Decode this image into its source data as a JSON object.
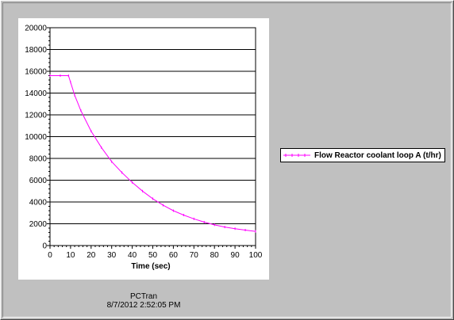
{
  "chart_data": {
    "type": "line",
    "xlabel": "Time (sec)",
    "ylabel": "",
    "xlim": [
      0,
      100
    ],
    "ylim": [
      0,
      20000
    ],
    "x_ticks": [
      "0",
      "10",
      "20",
      "30",
      "40",
      "50",
      "60",
      "70",
      "80",
      "90",
      "100"
    ],
    "y_ticks": [
      "0",
      "2000",
      "4000",
      "6000",
      "8000",
      "10000",
      "12000",
      "14000",
      "16000",
      "18000",
      "20000"
    ],
    "grid": "horizontal",
    "legend_position": "right",
    "series": [
      {
        "name": "Flow Reactor coolant loop A (t/hr)",
        "color": "#ff00ff",
        "x": [
          0,
          5,
          9,
          10,
          12,
          15,
          20,
          25,
          30,
          35,
          40,
          45,
          50,
          55,
          60,
          65,
          70,
          75,
          80,
          85,
          90,
          95,
          100
        ],
        "y": [
          15600,
          15600,
          15600,
          15000,
          13800,
          12400,
          10500,
          9000,
          7700,
          6700,
          5800,
          5000,
          4300,
          3700,
          3200,
          2800,
          2450,
          2150,
          1900,
          1700,
          1550,
          1420,
          1300
        ]
      }
    ]
  },
  "footer": {
    "app_name": "PCTran",
    "timestamp": "8/7/2012 2:52:05 PM"
  }
}
